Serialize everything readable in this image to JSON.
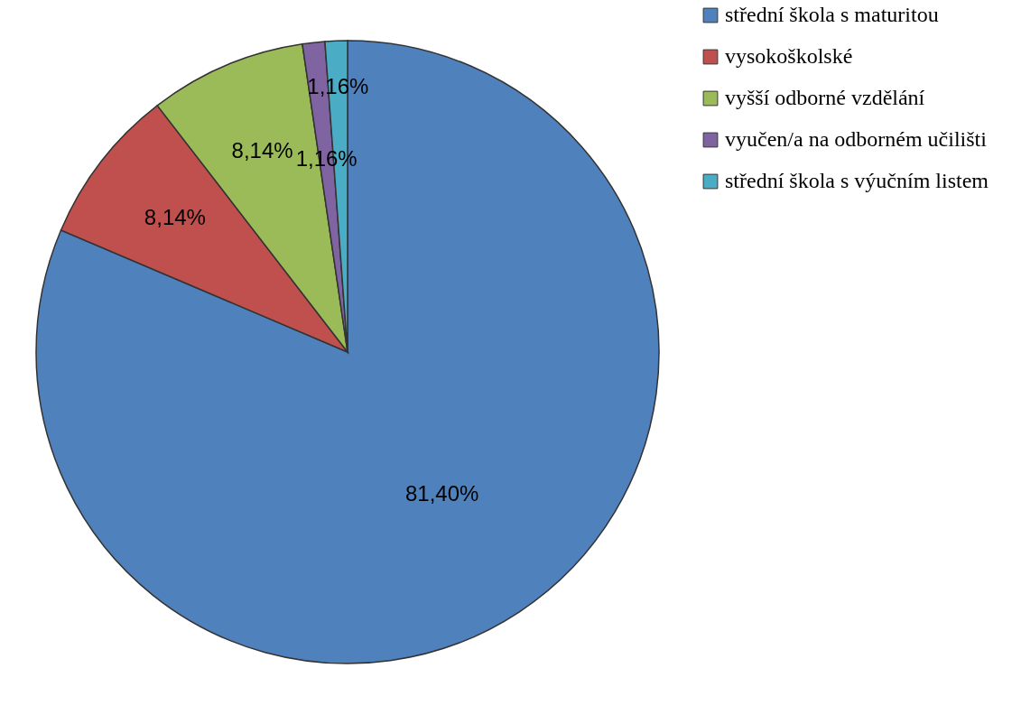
{
  "chart_data": {
    "type": "pie",
    "categories": [
      "střední škola s maturitou",
      "vysokoškolské",
      "vyšší odborné vzdělání",
      "vyučen/a na odborném učilišti",
      "střední škola s výučním listem"
    ],
    "values": [
      81.4,
      8.14,
      8.14,
      1.16,
      1.16
    ],
    "value_labels": [
      "81,40%",
      "8,14%",
      "8,14%",
      "1,16%",
      "1,16%"
    ],
    "colors": [
      "#4f81bd",
      "#c0504d",
      "#9bbb59",
      "#8064a2",
      "#4bacc6"
    ],
    "legend": "right"
  }
}
